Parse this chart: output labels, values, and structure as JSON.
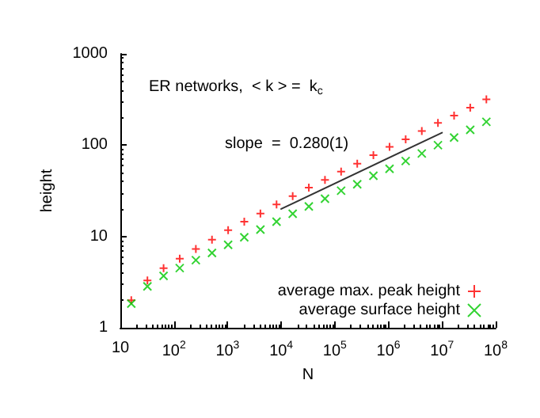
{
  "chart_data": {
    "type": "scatter",
    "xlabel": "N",
    "ylabel": "height",
    "annotations": [
      "ER networks,  < k > =  k$_{c}$",
      "slope  =  0.280(1)"
    ],
    "x": [
      16,
      32,
      64,
      128,
      256,
      512,
      1024,
      2048,
      4096,
      8192,
      16384,
      32768,
      65536,
      131072,
      262144,
      524288,
      1048576,
      2097152,
      4194304,
      8388608,
      16777216,
      33554432,
      67108864
    ],
    "series": [
      {
        "name": "average max. peak height",
        "color": "#ff0000",
        "marker": "cross",
        "values": [
          2.0,
          3.3,
          4.5,
          5.7,
          7.3,
          9.2,
          11.7,
          14.5,
          17.8,
          22.4,
          27.6,
          34.2,
          41.6,
          51.4,
          62.7,
          77.6,
          96,
          116,
          143,
          175,
          211,
          257,
          318
        ]
      },
      {
        "name": "average surface height",
        "color": "#00c800",
        "marker": "cross",
        "values": [
          1.84,
          2.84,
          3.7,
          4.5,
          5.5,
          6.6,
          8.1,
          9.8,
          11.9,
          14.5,
          17.7,
          21.3,
          25.9,
          31.7,
          37.3,
          46.2,
          55,
          67,
          81,
          100,
          121,
          147,
          180
        ]
      },
      {
        "type": "line",
        "color": "#333333",
        "marker": "none",
        "x": [
          10000,
          10000000
        ],
        "values": [
          20,
          137
        ]
      }
    ],
    "log": "xy",
    "xlim": [
      10,
      100000000
    ],
    "ylim": [
      1,
      1000
    ],
    "xticks": [
      {
        "value": 10,
        "label": "10"
      },
      {
        "value": 100,
        "label": "10$^{2}$"
      },
      {
        "value": 1000,
        "label": "10$^{3}$"
      },
      {
        "value": 10000,
        "label": "10$^{4}$"
      },
      {
        "value": 100000,
        "label": "10$^{5}$"
      },
      {
        "value": 1000000,
        "label": "10$^{6}$"
      },
      {
        "value": 10000000,
        "label": "10$^{7}$"
      },
      {
        "value": 100000000,
        "label": "10$^{8}$"
      }
    ],
    "yticks": [
      1,
      10,
      100,
      1000
    ],
    "grid": false,
    "legend": "bottom right"
  }
}
